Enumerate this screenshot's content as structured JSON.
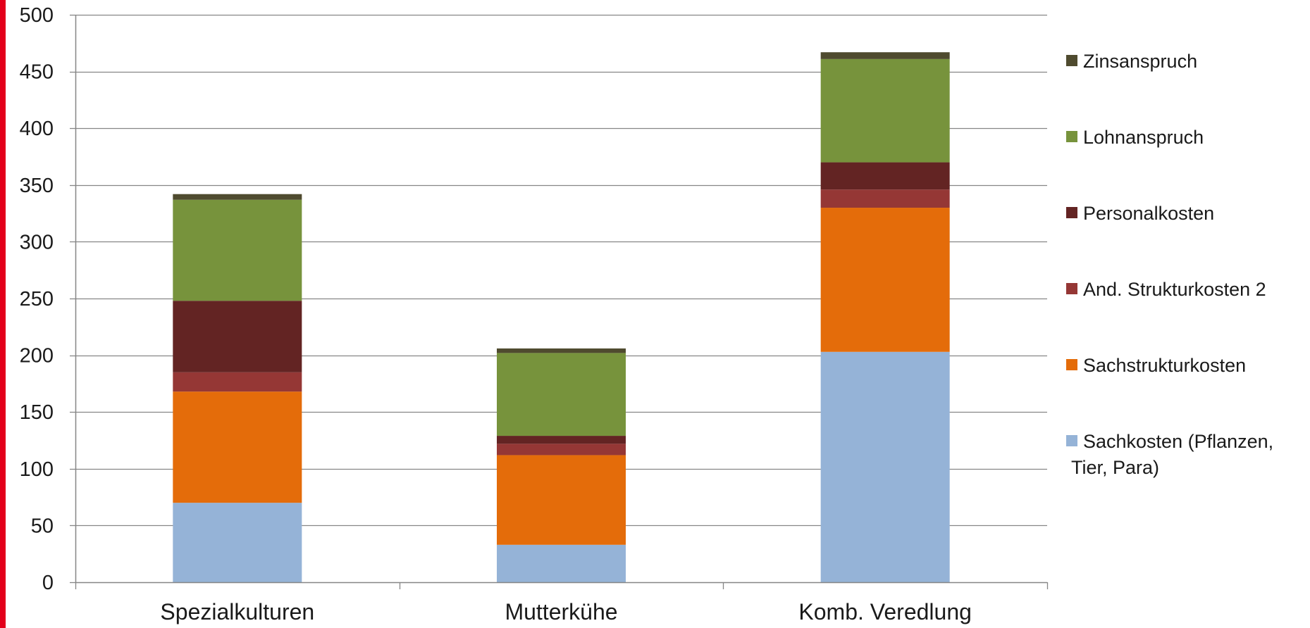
{
  "chart_data": {
    "type": "bar",
    "stacked": true,
    "title": "",
    "xlabel": "",
    "ylabel": "",
    "ylim": [
      0,
      500
    ],
    "yticks": [
      0,
      50,
      100,
      150,
      200,
      250,
      300,
      350,
      400,
      450,
      500
    ],
    "grid": true,
    "legend_position": "right",
    "categories": [
      "Spezialkulturen",
      "Mutterkühe",
      "Komb. Veredlung"
    ],
    "series": [
      {
        "name": "Sachkosten (Pflanzen, Tier, Para)",
        "legend_lines": [
          "Sachkosten (Pflanzen,",
          "Tier, Para)"
        ],
        "color": "#95b3d7",
        "values": [
          70,
          33,
          203
        ]
      },
      {
        "name": "Sachstrukturkosten",
        "legend_lines": [
          "Sachstrukturkosten"
        ],
        "color": "#e46c0a",
        "values": [
          98,
          79,
          127
        ]
      },
      {
        "name": "And. Strukturkosten 2",
        "legend_lines": [
          "And. Strukturkosten 2"
        ],
        "color": "#953735",
        "values": [
          17,
          10,
          16
        ]
      },
      {
        "name": "Personalkosten",
        "legend_lines": [
          "Personalkosten"
        ],
        "color": "#632423",
        "values": [
          63,
          7,
          24
        ]
      },
      {
        "name": "Lohnanspruch",
        "legend_lines": [
          "Lohnanspruch"
        ],
        "color": "#77933c",
        "values": [
          89,
          73,
          91
        ]
      },
      {
        "name": "Zinsanspruch",
        "legend_lines": [
          "Zinsanspruch"
        ],
        "color": "#4f4b2f",
        "values": [
          5,
          4,
          6
        ]
      }
    ]
  },
  "colors": {
    "accent_bar": "#e3001b",
    "gridline": "#868686",
    "axis": "#868686"
  }
}
